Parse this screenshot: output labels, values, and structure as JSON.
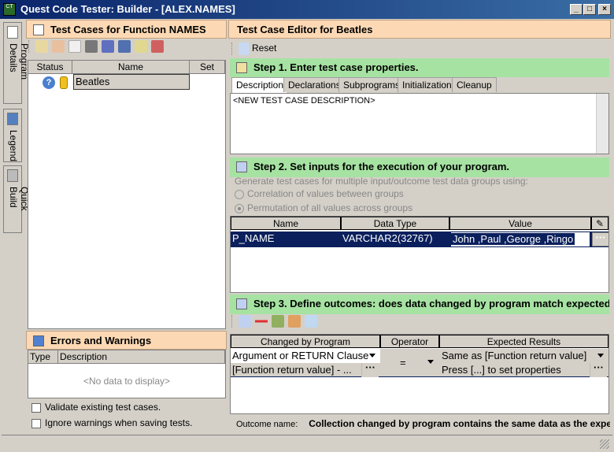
{
  "window": {
    "title": "Quest Code Tester: Builder - [ALEX.NAMES]",
    "app_icon": "CT"
  },
  "side_tabs": [
    {
      "label": "Program Details",
      "icon": "pages-icon"
    },
    {
      "label": "Legend",
      "icon": "legend-icon"
    },
    {
      "label": "Quick Build",
      "icon": "wrench-icon"
    }
  ],
  "left": {
    "title": "Test Cases for Function NAMES",
    "columns": [
      "Status",
      "Name",
      "Set"
    ],
    "rows": [
      {
        "name": "Beatles",
        "status_icon": "question-icon"
      }
    ],
    "errors_title": "Errors and Warnings",
    "errors_columns": [
      "Type",
      "Description"
    ],
    "errors_empty": "<No data to display>",
    "checks": [
      {
        "label": "Validate existing test cases.",
        "checked": false
      },
      {
        "label": "Ignore warnings when saving tests.",
        "checked": false
      }
    ]
  },
  "right": {
    "title": "Test Case Editor for Beatles",
    "reset": "Reset",
    "step1": {
      "title": "Step 1. Enter test case properties.",
      "tabs": [
        "Description",
        "Declarations",
        "Subprograms",
        "Initialization",
        "Cleanup"
      ],
      "active_tab": "Description",
      "description": "<NEW TEST CASE DESCRIPTION>"
    },
    "step2": {
      "title": "Step 2. Set inputs for the execution of your program.",
      "hint": "Generate test cases for multiple input/outcome test data groups using:",
      "options": [
        {
          "label": "Correlation of values between groups",
          "selected": false
        },
        {
          "label": "Permutation of all values across groups",
          "selected": true
        }
      ],
      "columns": [
        "Name",
        "Data Type",
        "Value"
      ],
      "rows": [
        {
          "name": "P_NAME",
          "type": "VARCHAR2(32767)",
          "value": "John ,Paul ,George ,Ringo"
        }
      ]
    },
    "step3": {
      "title": "Step 3. Define outcomes: does data changed by program match expected",
      "columns": [
        "Changed by Program",
        "Operator",
        "Expected Results"
      ],
      "row": {
        "changed": "Argument or RETURN Clause",
        "changed2": "[Function return value] - ...",
        "operator": "=",
        "expected": "Same as [Function return value]",
        "expected2": "Press [...] to set properties"
      },
      "outcome_label": "Outcome name:",
      "outcome_value": "Collection changed by program contains the same data as the expected"
    }
  },
  "colors": {
    "title_bar": "#0a246a",
    "panel_header": "#fcd9b4",
    "step_header": "#a6e2a2",
    "selected_row": "#0a1f5c"
  }
}
